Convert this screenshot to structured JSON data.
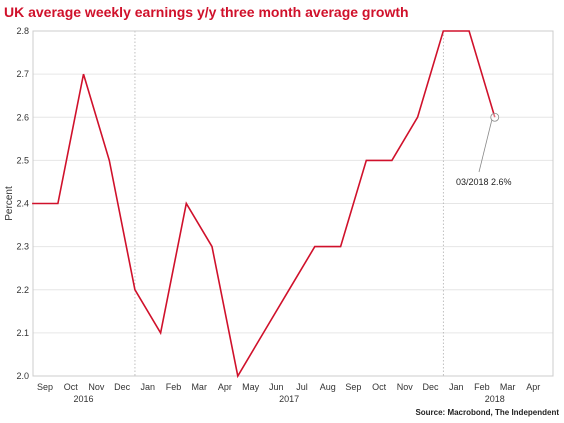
{
  "chart_data": {
    "type": "line",
    "title": "UK average weekly earnings y/y three month average growth",
    "ylabel": "Percent",
    "xlabel": "",
    "ylim": [
      2.0,
      2.8
    ],
    "yticks": [
      "2.0",
      "2.1",
      "2.2",
      "2.3",
      "2.4",
      "2.5",
      "2.6",
      "2.7",
      "2.8"
    ],
    "categories": [
      "Sep",
      "Oct",
      "Nov",
      "Dec",
      "Jan",
      "Feb",
      "Mar",
      "Apr",
      "May",
      "Jun",
      "Jul",
      "Aug",
      "Sep",
      "Oct",
      "Nov",
      "Dec",
      "Jan",
      "Feb",
      "Mar",
      "Apr"
    ],
    "year_labels": [
      {
        "label": "2016",
        "at": 1.5
      },
      {
        "label": "2017",
        "at": 9.5
      },
      {
        "label": "2018",
        "at": 17.5
      }
    ],
    "year_dividers": [
      3.5,
      15.5
    ],
    "series": [
      {
        "color": "#d0112b",
        "points": [
          [
            -0.5,
            2.4
          ],
          [
            0.5,
            2.4
          ],
          [
            1.5,
            2.7
          ],
          [
            2.5,
            2.5
          ],
          [
            3.5,
            2.2
          ],
          [
            4.5,
            2.1
          ],
          [
            5.5,
            2.4
          ],
          [
            6.5,
            2.3
          ],
          [
            7.5,
            2.0
          ],
          [
            8.5,
            2.1
          ],
          [
            9.5,
            2.2
          ],
          [
            10.5,
            2.3
          ],
          [
            11.5,
            2.3
          ],
          [
            12.5,
            2.5
          ],
          [
            13.5,
            2.5
          ],
          [
            14.5,
            2.6
          ],
          [
            15.5,
            2.8
          ],
          [
            16.5,
            2.8
          ],
          [
            17.5,
            2.6
          ]
        ]
      }
    ],
    "annotation": {
      "text": "03/2018 2.6%",
      "x": 17.5,
      "y": 2.6
    },
    "grid": true,
    "source": "Source: Macrobond, The Independent",
    "title_color": "#d0112b"
  }
}
